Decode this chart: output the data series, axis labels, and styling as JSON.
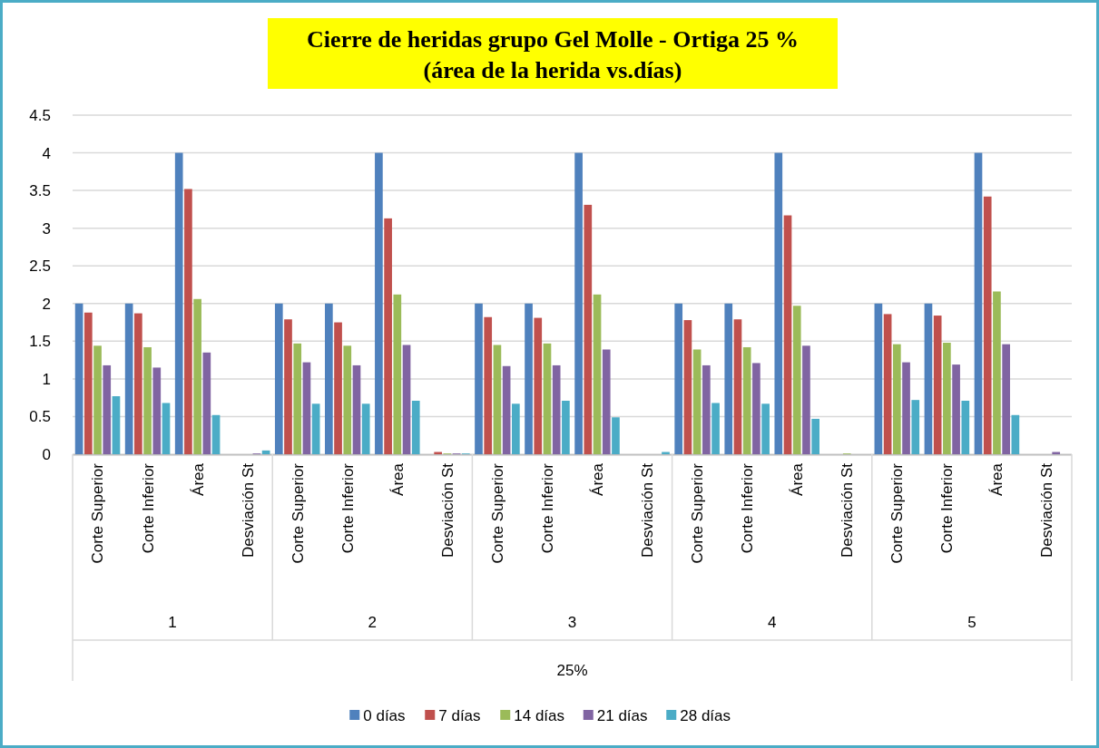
{
  "chart_data": {
    "type": "bar",
    "title": "Cierre de heridas grupo Gel Molle - Ortiga 25 %",
    "subtitle": "(área de la herida vs.días)",
    "categories": [
      "Corte Superior",
      "Corte Inferior",
      "Área",
      "Desviación St",
      "Corte Superior",
      "Corte Inferior",
      "Área",
      "Desviación St",
      "Corte Superior",
      "Corte Inferior",
      "Área",
      "Desviación St",
      "Corte Superior",
      "Corte Inferior",
      "Área",
      "Desviación St",
      "Corte Superior",
      "Corte Inferior",
      "Área",
      "Desviación St"
    ],
    "series": [
      {
        "name": "0 días",
        "color": "#4f81bd",
        "values": [
          2,
          2,
          4,
          0,
          2,
          2,
          4,
          0,
          2,
          2,
          4,
          0,
          2,
          2,
          4,
          0,
          2,
          2,
          4,
          0
        ]
      },
      {
        "name": "7 días",
        "color": "#c0504d",
        "values": [
          1.88,
          1.87,
          3.52,
          0,
          1.79,
          1.75,
          3.13,
          0.03,
          1.82,
          1.81,
          3.31,
          0,
          1.78,
          1.79,
          3.17,
          0,
          1.86,
          1.84,
          3.42,
          0
        ]
      },
      {
        "name": "14 días",
        "color": "#9bbb59",
        "values": [
          1.44,
          1.42,
          2.06,
          0,
          1.47,
          1.44,
          2.12,
          0.01,
          1.45,
          1.47,
          2.12,
          0,
          1.39,
          1.42,
          1.97,
          0.01,
          1.46,
          1.48,
          2.16,
          0
        ]
      },
      {
        "name": "21 días",
        "color": "#8064a2",
        "values": [
          1.18,
          1.15,
          1.35,
          0.01,
          1.22,
          1.18,
          1.45,
          0.01,
          1.17,
          1.18,
          1.39,
          0,
          1.18,
          1.21,
          1.44,
          0,
          1.22,
          1.19,
          1.46,
          0.03
        ]
      },
      {
        "name": "28 días",
        "color": "#4bacc6",
        "values": [
          0.77,
          0.68,
          0.52,
          0.05,
          0.67,
          0.67,
          0.71,
          0.01,
          0.67,
          0.71,
          0.49,
          0.03,
          0.68,
          0.67,
          0.47,
          0,
          0.72,
          0.71,
          0.52,
          0
        ]
      }
    ],
    "annotations": [
      "1",
      "2",
      "3",
      "4",
      "5",
      "25%"
    ],
    "ylim": [
      0,
      4.5
    ],
    "yticks": [
      0,
      0.5,
      1,
      1.5,
      2,
      2.5,
      3,
      3.5,
      4,
      4.5
    ],
    "grid": "y",
    "legend": "bottom"
  }
}
